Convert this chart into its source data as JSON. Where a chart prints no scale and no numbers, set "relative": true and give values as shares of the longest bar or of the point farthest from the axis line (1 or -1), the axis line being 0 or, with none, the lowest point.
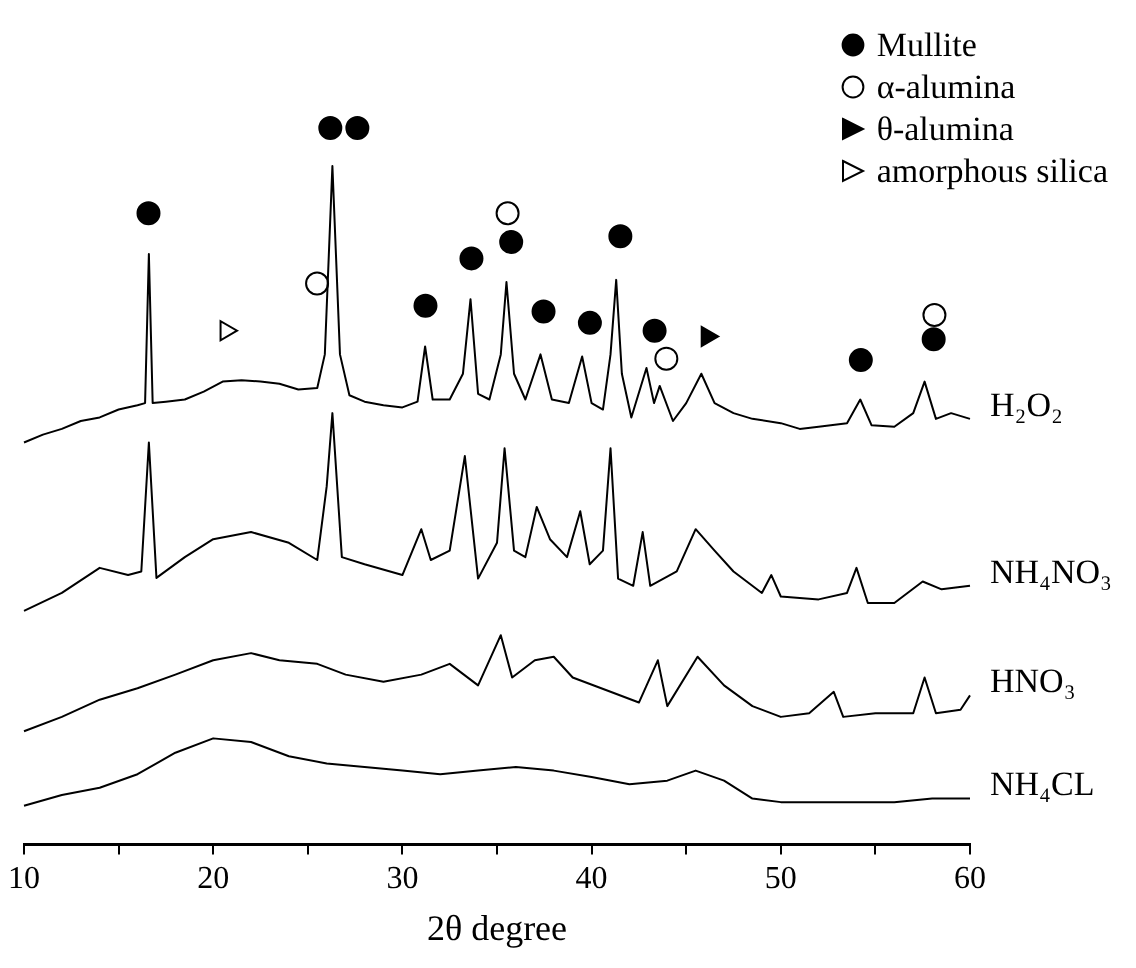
{
  "chart_data": {
    "type": "line",
    "xlabel": "2θ degree",
    "relative": true,
    "xlim": [
      10,
      60
    ],
    "xticks": [
      10,
      {
        "value": 15,
        "label": null
      },
      20,
      {
        "value": 25,
        "label": null
      },
      30,
      {
        "value": 35,
        "label": null
      },
      40,
      {
        "value": 45,
        "label": null
      },
      50,
      {
        "value": 55,
        "label": null
      },
      60
    ],
    "grid": false,
    "legend": "top right",
    "marker": "none",
    "series": [
      {
        "name": "H₂O₂",
        "color": "#000000",
        "x": [
          10,
          11,
          12,
          13,
          14,
          15,
          16,
          16.4,
          16.6,
          16.8,
          17.5,
          18.5,
          19.5,
          20.5,
          21.5,
          22.5,
          23.5,
          24.5,
          25.5,
          25.9,
          26.3,
          26.7,
          27.2,
          28,
          29,
          30,
          30.8,
          31.2,
          31.6,
          32.5,
          33.2,
          33.6,
          34,
          34.6,
          35.2,
          35.5,
          35.9,
          36.5,
          37.3,
          37.9,
          38.8,
          39.5,
          40,
          40.6,
          41,
          41.3,
          41.6,
          42.1,
          42.9,
          43.3,
          43.6,
          44.3,
          45,
          45.8,
          46.5,
          47.5,
          48.5,
          50,
          51,
          52,
          53.5,
          54.2,
          54.8,
          56,
          57,
          57.6,
          58.2,
          59,
          60
        ],
        "values": [
          0.561,
          0.572,
          0.58,
          0.591,
          0.596,
          0.607,
          0.613,
          0.616,
          0.824,
          0.616,
          0.618,
          0.621,
          0.632,
          0.646,
          0.648,
          0.646,
          0.643,
          0.635,
          0.637,
          0.684,
          0.947,
          0.684,
          0.627,
          0.618,
          0.613,
          0.61,
          0.618,
          0.695,
          0.621,
          0.621,
          0.657,
          0.761,
          0.629,
          0.621,
          0.684,
          0.785,
          0.657,
          0.621,
          0.684,
          0.621,
          0.616,
          0.681,
          0.616,
          0.607,
          0.684,
          0.788,
          0.657,
          0.596,
          0.665,
          0.616,
          0.64,
          0.591,
          0.616,
          0.657,
          0.616,
          0.602,
          0.594,
          0.588,
          0.58,
          0.583,
          0.588,
          0.621,
          0.585,
          0.583,
          0.602,
          0.646,
          0.594,
          0.602,
          0.594
        ]
      },
      {
        "name": "NH₄NO₃",
        "color": "#000000",
        "x": [
          10,
          12,
          14,
          15.5,
          16.2,
          16.6,
          17,
          18.5,
          20,
          22,
          24,
          25.5,
          26,
          26.3,
          26.8,
          28,
          30,
          31,
          31.5,
          32.5,
          33.3,
          34,
          35,
          35.4,
          35.9,
          36.5,
          37.1,
          37.8,
          38.7,
          39.4,
          39.9,
          40.6,
          41,
          41.4,
          42.2,
          42.7,
          43.1,
          44.5,
          45.5,
          46.5,
          47.5,
          49,
          49.5,
          50,
          52,
          53.5,
          54,
          54.6,
          56,
          57.5,
          58.5,
          60
        ],
        "values": [
          0.326,
          0.351,
          0.386,
          0.376,
          0.381,
          0.561,
          0.372,
          0.401,
          0.426,
          0.436,
          0.421,
          0.397,
          0.5,
          0.602,
          0.401,
          0.391,
          0.376,
          0.44,
          0.397,
          0.41,
          0.542,
          0.371,
          0.421,
          0.553,
          0.41,
          0.401,
          0.471,
          0.426,
          0.401,
          0.465,
          0.391,
          0.41,
          0.553,
          0.371,
          0.361,
          0.436,
          0.361,
          0.381,
          0.44,
          0.41,
          0.381,
          0.351,
          0.376,
          0.346,
          0.342,
          0.351,
          0.386,
          0.337,
          0.337,
          0.367,
          0.356,
          0.361
        ]
      },
      {
        "name": "HNO₃",
        "color": "#000000",
        "x": [
          10,
          12,
          14,
          16,
          18,
          20,
          22,
          23.5,
          25.5,
          27,
          29,
          31,
          32.5,
          34,
          35.2,
          35.8,
          37,
          38,
          39,
          41,
          42.5,
          43.5,
          44,
          45.6,
          47,
          48.5,
          50,
          51.5,
          52.8,
          53.3,
          55,
          57,
          57.6,
          58.2,
          59.5,
          60
        ],
        "values": [
          0.158,
          0.178,
          0.202,
          0.218,
          0.237,
          0.257,
          0.267,
          0.257,
          0.252,
          0.237,
          0.227,
          0.237,
          0.252,
          0.222,
          0.292,
          0.233,
          0.257,
          0.262,
          0.233,
          0.213,
          0.198,
          0.257,
          0.193,
          0.262,
          0.222,
          0.193,
          0.178,
          0.183,
          0.213,
          0.178,
          0.183,
          0.183,
          0.233,
          0.183,
          0.188,
          0.208
        ]
      },
      {
        "name": "NH₄CL",
        "color": "#000000",
        "x": [
          10,
          12,
          14,
          16,
          18,
          20,
          22,
          24,
          26,
          28,
          30,
          32,
          34,
          36,
          38,
          40,
          42,
          44,
          45.5,
          47,
          48.5,
          50,
          53,
          56,
          58,
          60
        ],
        "values": [
          0.054,
          0.069,
          0.079,
          0.098,
          0.128,
          0.148,
          0.143,
          0.123,
          0.113,
          0.108,
          0.103,
          0.098,
          0.103,
          0.108,
          0.103,
          0.094,
          0.084,
          0.089,
          0.103,
          0.089,
          0.064,
          0.059,
          0.059,
          0.059,
          0.064,
          0.064
        ]
      },
      {
        "name": "Mullite",
        "type": "scatter",
        "marker": "circle",
        "color": "#000000",
        "x": [
          16.58,
          26.19,
          27.62,
          31.22,
          33.65,
          35.75,
          37.46,
          39.91,
          41.52,
          43.33,
          54.23,
          58.08
        ],
        "values": [
          0.881,
          1,
          1,
          0.752,
          0.818,
          0.841,
          0.744,
          0.728,
          0.849,
          0.717,
          0.676,
          0.705
        ]
      },
      {
        "name": "α-alumina",
        "type": "scatter",
        "marker": "circle",
        "color": "#ffffff",
        "x": [
          25.49,
          35.56,
          43.95,
          58.12
        ],
        "values": [
          0.783,
          0.881,
          0.678,
          0.739
        ]
      },
      {
        "name": "θ-alumina",
        "type": "scatter",
        "marker": "triangle",
        "color": "#000000",
        "x": [
          46.11
        ],
        "values": [
          0.709
        ]
      },
      {
        "name": "amorphous silica",
        "type": "scatter",
        "marker": "triangle",
        "color": "#ffffff",
        "x": [
          20.68
        ],
        "values": [
          0.717
        ]
      }
    ]
  }
}
